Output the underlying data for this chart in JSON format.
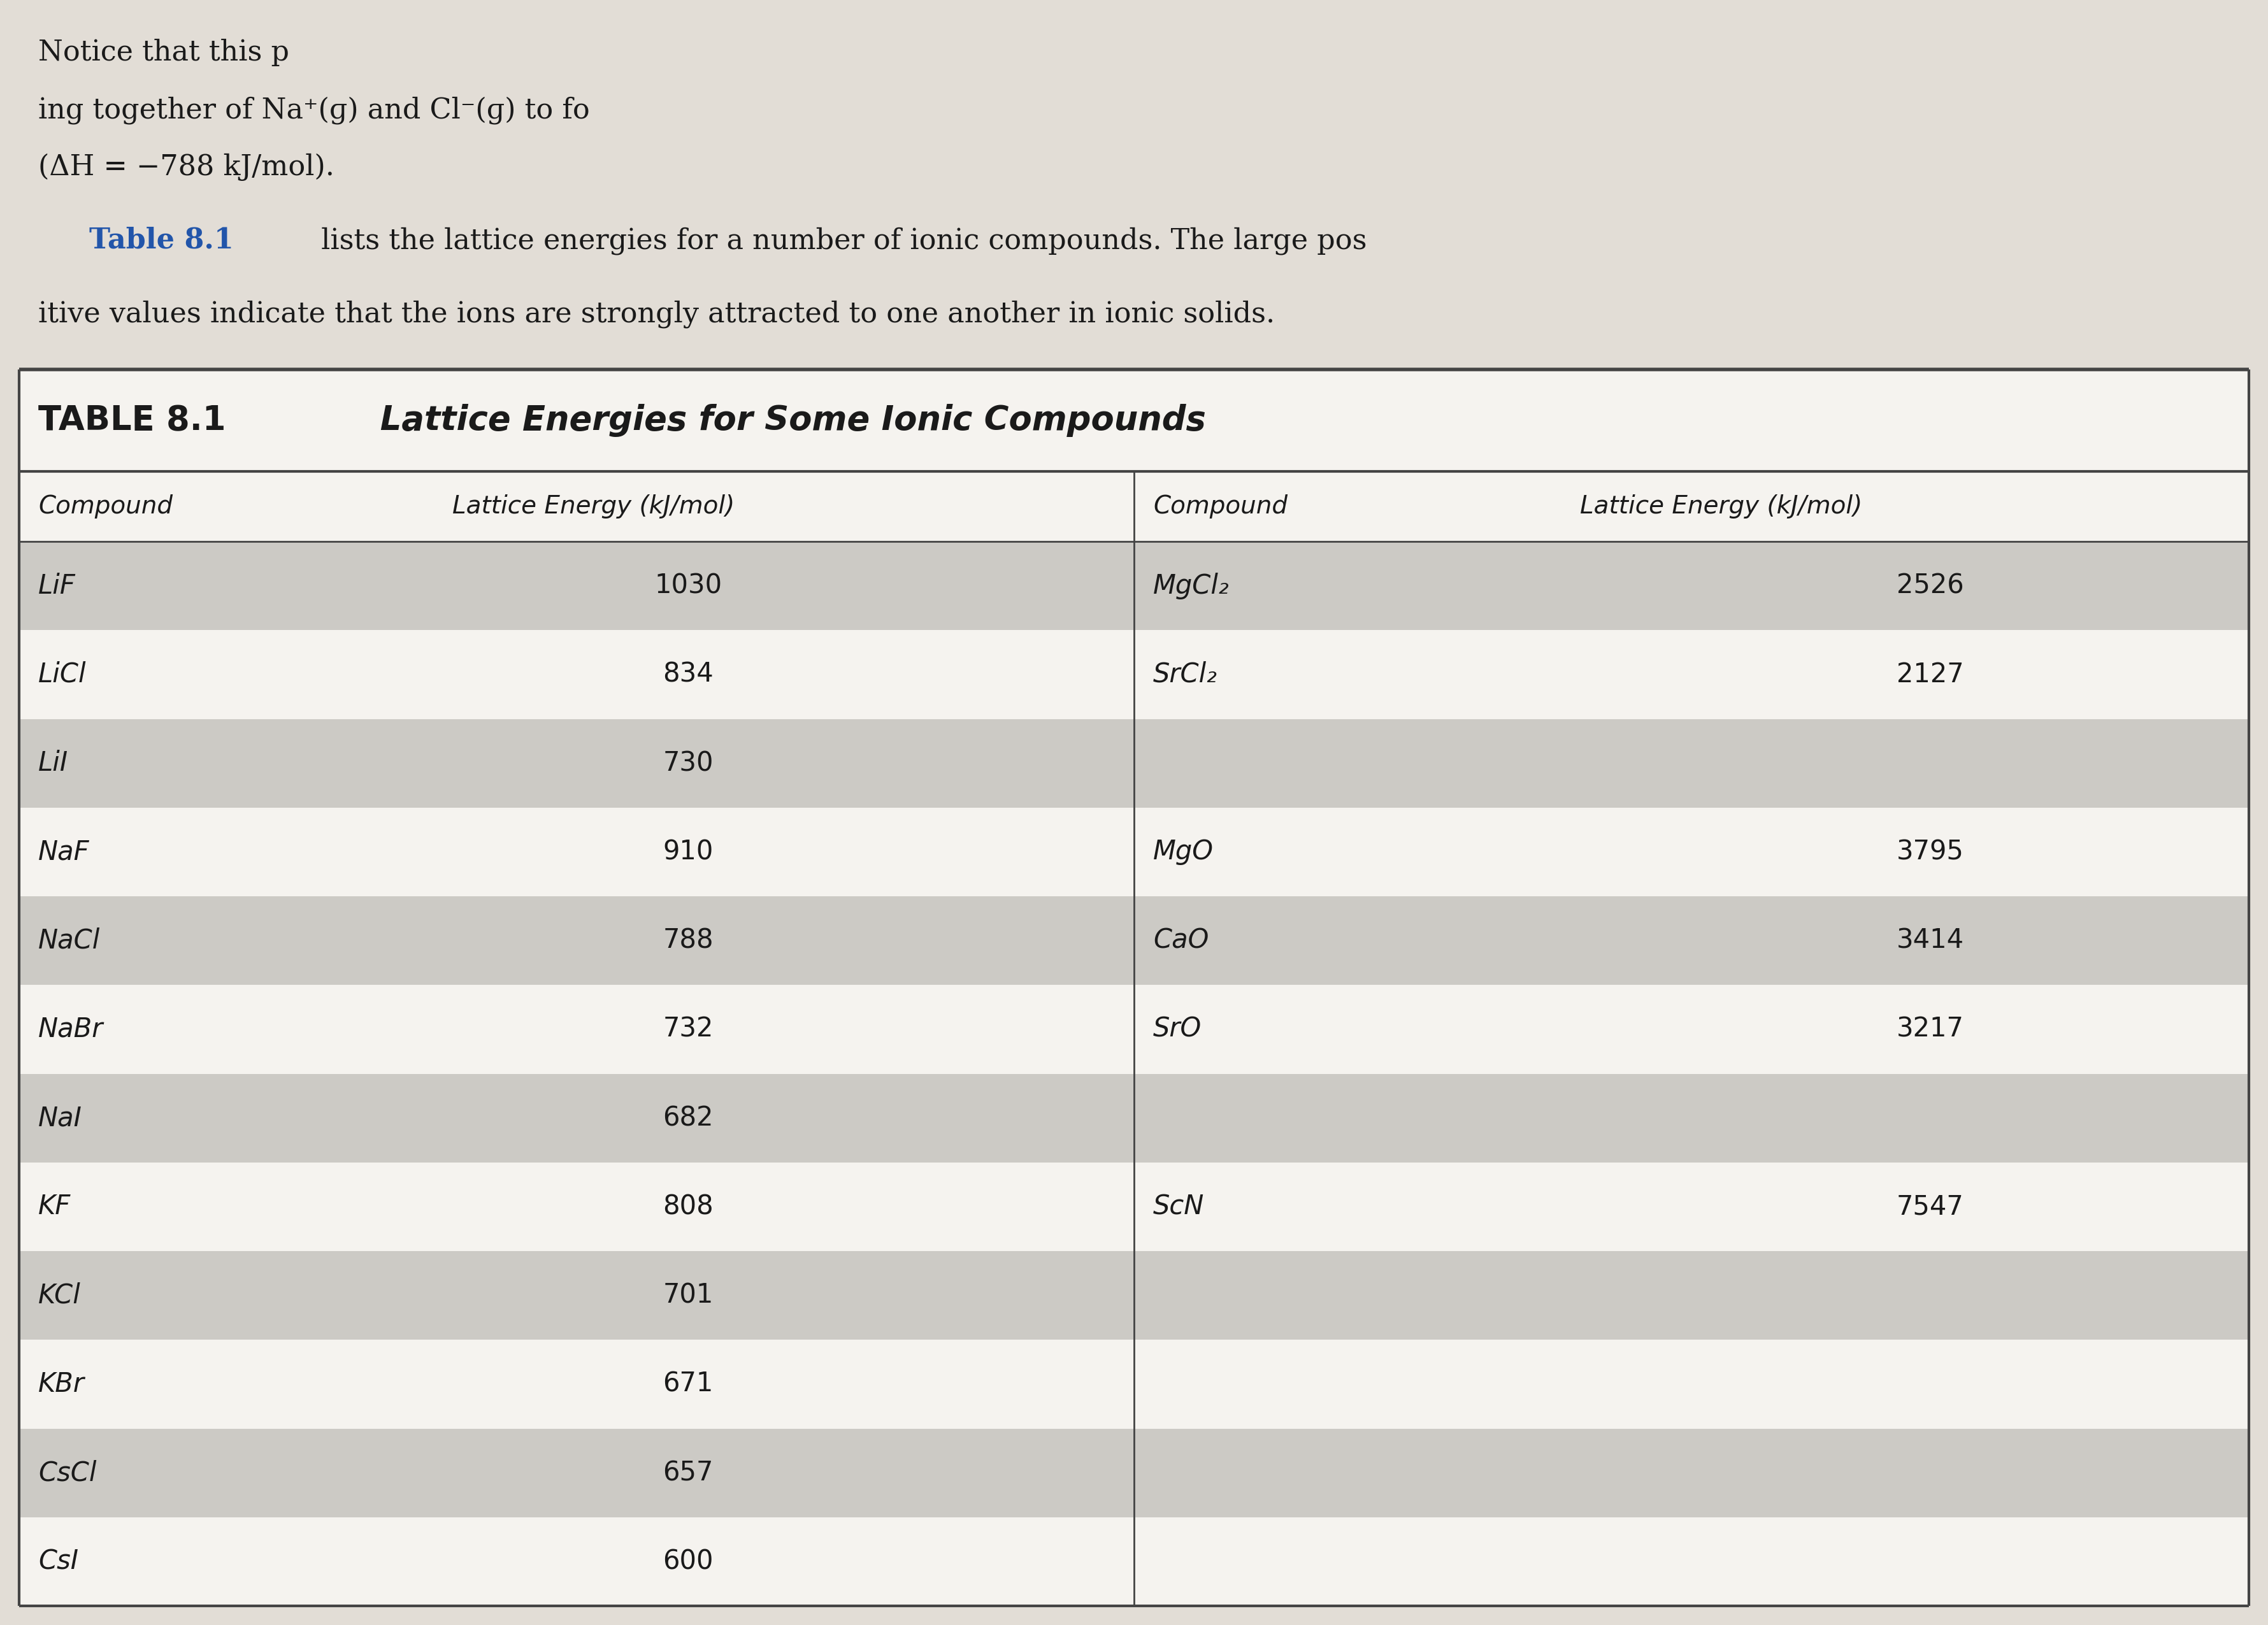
{
  "bg_color_page": "#E2DDD6",
  "bg_color_white": "#F5F3EF",
  "bg_color_gray": "#CCCAC5",
  "divider_color": "#444444",
  "text_color": "#1a1a1a",
  "header_text_color": "#1a1a1a",
  "title_color": "#1a1a1a",
  "blue_color": "#2255AA",
  "font_size_intro": 32,
  "font_size_title": 38,
  "font_size_header": 28,
  "font_size_data": 30,
  "left_data": [
    [
      "LiF",
      "1030"
    ],
    [
      "LiCl",
      "834"
    ],
    [
      "LiI",
      "730"
    ],
    [
      "NaF",
      "910"
    ],
    [
      "NaCl",
      "788"
    ],
    [
      "NaBr",
      "732"
    ],
    [
      "NaI",
      "682"
    ],
    [
      "KF",
      "808"
    ],
    [
      "KCl",
      "701"
    ],
    [
      "KBr",
      "671"
    ],
    [
      "CsCl",
      "657"
    ],
    [
      "CsI",
      "600"
    ]
  ],
  "right_data": [
    [
      "MgCl₂",
      "2526"
    ],
    [
      "SrCl₂",
      "2127"
    ],
    [
      "",
      ""
    ],
    [
      "MgO",
      "3795"
    ],
    [
      "CaO",
      "3414"
    ],
    [
      "SrO",
      "3217"
    ],
    [
      "",
      ""
    ],
    [
      "ScN",
      "7547"
    ],
    [
      "",
      ""
    ],
    [
      "",
      ""
    ],
    [
      "",
      ""
    ],
    [
      "",
      ""
    ]
  ]
}
